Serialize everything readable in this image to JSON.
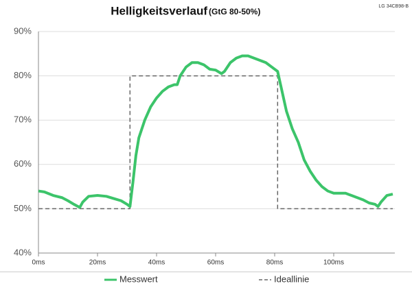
{
  "chart_data": {
    "type": "line",
    "title": "Helligkeitsverlauf",
    "subtitle": "(GtG 80-50%)",
    "annotation": "LG 34CB98-B",
    "xlim": [
      0,
      120
    ],
    "ylim": [
      40,
      90
    ],
    "xticks": [
      {
        "value": 0,
        "label": "0ms"
      },
      {
        "value": 20,
        "label": "20ms"
      },
      {
        "value": 40,
        "label": "40ms"
      },
      {
        "value": 60,
        "label": "60ms"
      },
      {
        "value": 80,
        "label": "80ms"
      },
      {
        "value": 100,
        "label": "100ms"
      }
    ],
    "yticks": [
      {
        "value": 40,
        "label": "40%"
      },
      {
        "value": 50,
        "label": "50%"
      },
      {
        "value": 60,
        "label": "60%"
      },
      {
        "value": 70,
        "label": "70%"
      },
      {
        "value": 80,
        "label": "80%"
      },
      {
        "value": 90,
        "label": "90%"
      }
    ],
    "grid": true,
    "legend": "bottom",
    "series": [
      {
        "name": "Messwert",
        "color": "#3cc46a",
        "dash": false,
        "x": [
          0,
          2,
          5,
          8,
          10,
          12,
          14,
          15,
          17,
          20,
          23,
          26,
          28,
          30,
          31,
          32,
          33,
          34,
          36,
          38,
          40,
          42,
          44,
          46,
          47,
          48,
          50,
          52,
          54,
          56,
          58,
          60,
          62,
          63,
          65,
          67,
          69,
          71,
          73,
          75,
          77,
          79,
          81,
          82,
          83,
          84,
          86,
          88,
          90,
          92,
          94,
          96,
          98,
          100,
          102,
          104,
          106,
          108,
          110,
          112,
          114,
          115,
          116,
          118,
          120
        ],
        "values": [
          54,
          53.8,
          53,
          52.5,
          51.8,
          51,
          50.3,
          51.5,
          52.8,
          53,
          52.8,
          52.2,
          51.8,
          51,
          50.5,
          56,
          62,
          66,
          70,
          73,
          75,
          76.5,
          77.5,
          78,
          78,
          80,
          82,
          83,
          83,
          82.5,
          81.5,
          81.3,
          80.5,
          81,
          83,
          84,
          84.5,
          84.5,
          84,
          83.5,
          83,
          82,
          81,
          78,
          75,
          72,
          68,
          65,
          61,
          58.5,
          56.5,
          55,
          54,
          53.5,
          53.5,
          53.5,
          53,
          52.5,
          52,
          51.3,
          51,
          50.5,
          51.5,
          53,
          53.3
        ]
      },
      {
        "name": "Ideallinie",
        "color": "#666666",
        "dash": true,
        "x": [
          0,
          31,
          31,
          81,
          81,
          120
        ],
        "values": [
          50,
          50,
          80,
          80,
          50,
          50
        ]
      }
    ]
  }
}
